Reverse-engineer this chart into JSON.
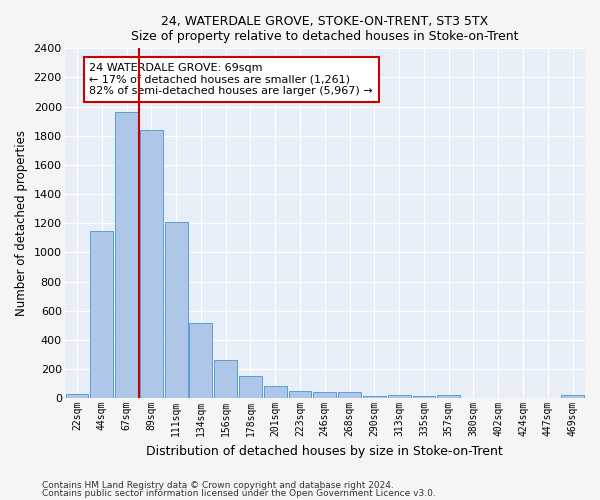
{
  "title1": "24, WATERDALE GROVE, STOKE-ON-TRENT, ST3 5TX",
  "title2": "Size of property relative to detached houses in Stoke-on-Trent",
  "xlabel": "Distribution of detached houses by size in Stoke-on-Trent",
  "ylabel": "Number of detached properties",
  "footnote1": "Contains HM Land Registry data © Crown copyright and database right 2024.",
  "footnote2": "Contains public sector information licensed under the Open Government Licence v3.0.",
  "bar_labels": [
    "22sqm",
    "44sqm",
    "67sqm",
    "89sqm",
    "111sqm",
    "134sqm",
    "156sqm",
    "178sqm",
    "201sqm",
    "223sqm",
    "246sqm",
    "268sqm",
    "290sqm",
    "313sqm",
    "335sqm",
    "357sqm",
    "380sqm",
    "402sqm",
    "424sqm",
    "447sqm",
    "469sqm"
  ],
  "bar_values": [
    30,
    1150,
    1960,
    1840,
    1210,
    515,
    265,
    155,
    80,
    50,
    45,
    40,
    18,
    22,
    12,
    20,
    0,
    0,
    0,
    0,
    20
  ],
  "bar_color": "#aec6e8",
  "bar_edge_color": "#5a9fd4",
  "background_color": "#e8eef7",
  "grid_color": "#ffffff",
  "annotation_text": "24 WATERDALE GROVE: 69sqm\n← 17% of detached houses are smaller (1,261)\n82% of semi-detached houses are larger (5,967) →",
  "annotation_box_color": "#ffffff",
  "annotation_box_edge_color": "#cc0000",
  "vline_color": "#cc0000",
  "vline_x": 2.5,
  "ylim": [
    0,
    2400
  ],
  "yticks": [
    0,
    200,
    400,
    600,
    800,
    1000,
    1200,
    1400,
    1600,
    1800,
    2000,
    2200,
    2400
  ],
  "fig_width": 6.0,
  "fig_height": 5.0,
  "fig_bg": "#f5f5f5"
}
